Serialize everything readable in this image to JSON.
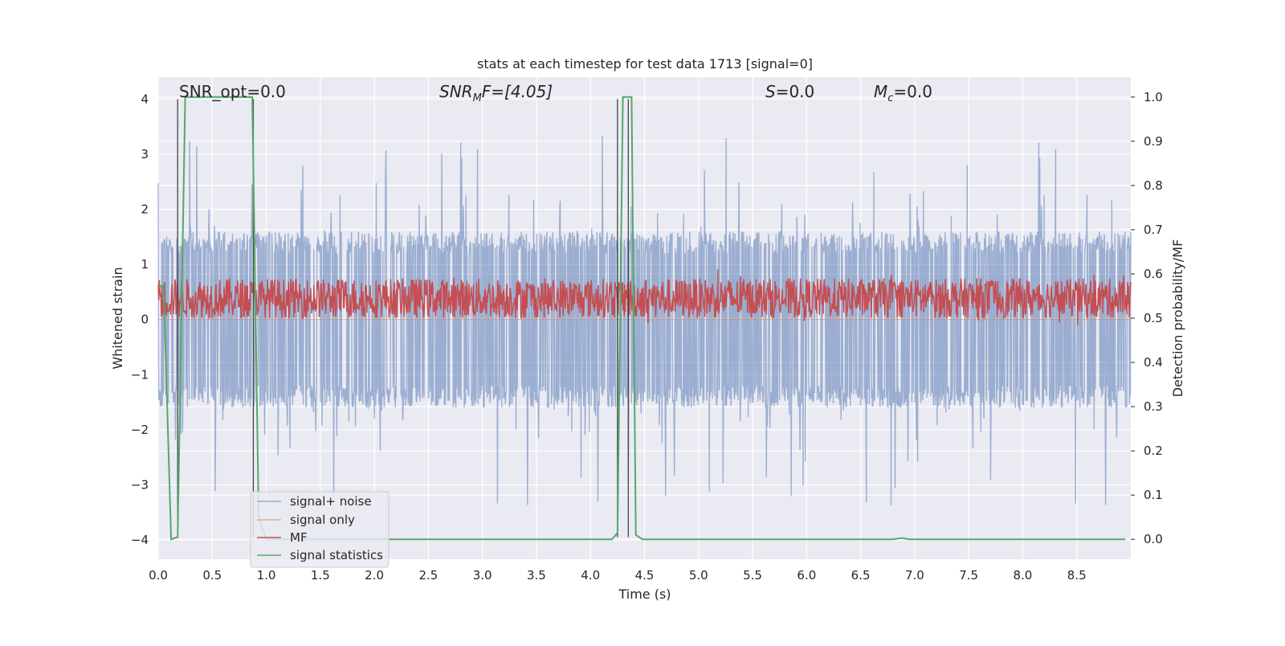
{
  "chart_data": {
    "type": "line",
    "title": "stats at each timestep for test data 1713 [signal=0]",
    "xlabel": "Time (s)",
    "ylabel": "Whitened strain",
    "ylabel_right": "Detection probability/MF",
    "xlim": [
      0.0,
      9.0
    ],
    "ylim": [
      -4.35,
      4.4
    ],
    "ylim_right": [
      -0.045,
      1.045
    ],
    "x_ticks": [
      "0.0",
      "0.5",
      "1.0",
      "1.5",
      "2.0",
      "2.5",
      "3.0",
      "3.5",
      "4.0",
      "4.5",
      "5.0",
      "5.5",
      "6.0",
      "6.5",
      "7.0",
      "7.5",
      "8.0",
      "8.5"
    ],
    "y_ticks": [
      "4",
      "3",
      "2",
      "1",
      "0",
      "−1",
      "−2",
      "−3",
      "−4"
    ],
    "y_right_ticks": [
      "1.0",
      "0.9",
      "0.8",
      "0.7",
      "0.6",
      "0.5",
      "0.4",
      "0.3",
      "0.2",
      "0.1",
      "0.0"
    ],
    "grid": true,
    "legend_position": "lower-left",
    "annotations": {
      "snr_opt": "SNR_opt=0.0",
      "snr_mf_main": "SNR",
      "snr_mf_sub": "M",
      "snr_mf_rest": "F=[4.05]",
      "s_main": "S",
      "s_rest": "=0.0",
      "mc_main": "M",
      "mc_sub": "c",
      "mc_rest": "=0.0"
    },
    "vertical_markers": [
      0.18,
      0.88,
      4.25,
      4.35
    ],
    "series": [
      {
        "name": "signal+ noise",
        "axis": "left",
        "color": "#4c72b0",
        "alpha": 0.5,
        "envelope": {
          "typical_low": -1.6,
          "typical_high": 1.6,
          "peak_max": 4.0,
          "peak_min": -3.9
        }
      },
      {
        "name": "signal only",
        "axis": "left",
        "color": "#dd8452",
        "x": [
          0.0,
          9.0
        ],
        "y": [
          0.0,
          0.0
        ]
      },
      {
        "name": "MF",
        "axis": "right",
        "color": "#c44e52",
        "envelope": {
          "baseline": 0.545,
          "spread": 0.045
        }
      },
      {
        "name": "signal statistics",
        "axis": "right",
        "color": "#55a868",
        "x": [
          0.0,
          0.05,
          0.12,
          0.18,
          0.25,
          0.4,
          0.6,
          0.87,
          0.93,
          1.0,
          2.0,
          3.0,
          4.0,
          4.2,
          4.25,
          4.3,
          4.38,
          4.42,
          4.48,
          5.0,
          6.0,
          6.8,
          6.88,
          6.95,
          7.0,
          8.0,
          8.95
        ],
        "y": [
          0.57,
          0.575,
          0.0,
          0.005,
          1.0,
          1.0,
          1.0,
          1.0,
          0.05,
          0.0,
          0.0,
          0.0,
          0.0,
          0.0,
          0.015,
          1.0,
          1.0,
          0.01,
          0.0,
          0.0,
          0.0,
          0.0,
          0.003,
          0.0,
          0.0,
          0.0,
          0.0
        ]
      }
    ]
  }
}
